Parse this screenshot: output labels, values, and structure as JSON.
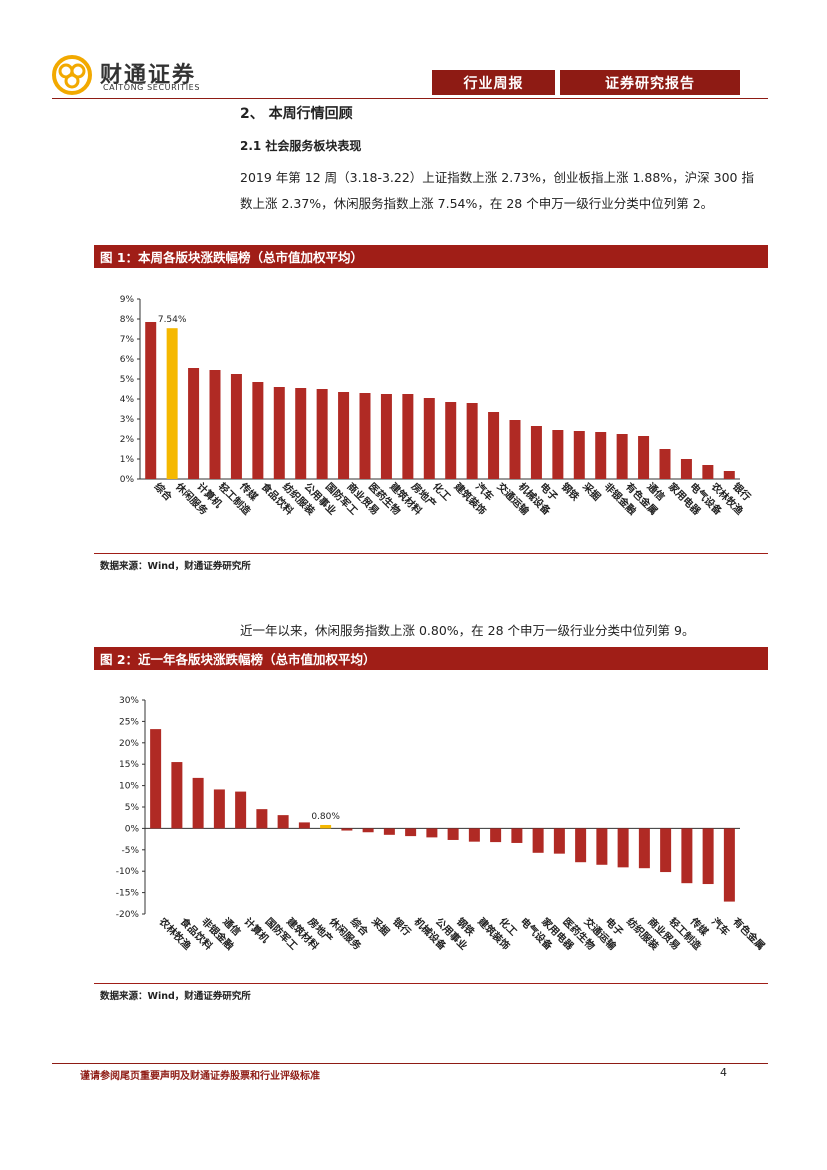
{
  "header": {
    "brand_cn": "财通证券",
    "brand_en": "CAITONG SECURITIES",
    "tag_left": "行业周报",
    "tag_right": "证券研究报告"
  },
  "section_title": "2、 本周行情回顾",
  "subsection_title": "2.1  社会服务板块表现",
  "paragraph1": "2019 年第 12 周（3.18-3.22）上证指数上涨 2.73%，创业板指上涨 1.88%，沪深 300 指数上涨 2.37%，休闲服务指数上涨 7.54%，在 28 个申万一级行业分类中位列第 2。",
  "paragraph2": "近一年以来，休闲服务指数上涨 0.80%，在 28 个申万一级行业分类中位列第 9。",
  "figure1": {
    "title": "图 1：本周各版块涨跌幅榜（总市值加权平均）",
    "source": "数据来源：Wind，财通证券研究所"
  },
  "figure2": {
    "title": "图 2：近一年各版块涨跌幅榜（总市值加权平均）",
    "source": "数据来源：Wind，财通证券研究所"
  },
  "footer": {
    "disclaimer": "谨请参阅尾页重要声明及财通证券股票和行业评级标准",
    "page": "4"
  },
  "colors": {
    "brand": "#8e1b14",
    "bar": "#b02a24",
    "highlight": "#f5b800"
  },
  "chart_data": [
    {
      "type": "bar",
      "categories": [
        "综合",
        "休闲服务",
        "计算机",
        "轻工制造",
        "传媒",
        "食品饮料",
        "纺织服装",
        "公用事业",
        "国防军工",
        "商业贸易",
        "医药生物",
        "建筑材料",
        "房地产",
        "化工",
        "建筑装饰",
        "汽车",
        "交通运输",
        "机械设备",
        "电子",
        "钢铁",
        "采掘",
        "非银金融",
        "有色金属",
        "通信",
        "家用电器",
        "电气设备",
        "农林牧渔",
        "银行"
      ],
      "values": [
        7.85,
        7.54,
        5.55,
        5.45,
        5.25,
        4.85,
        4.6,
        4.55,
        4.5,
        4.35,
        4.3,
        4.25,
        4.25,
        4.05,
        3.85,
        3.8,
        3.35,
        2.95,
        2.65,
        2.45,
        2.4,
        2.35,
        2.25,
        2.15,
        1.5,
        1.0,
        0.7,
        0.4
      ],
      "highlight_index": 1,
      "data_labels": [
        {
          "index": 1,
          "text": "7.54%"
        }
      ],
      "ylim": [
        0,
        9
      ],
      "yticks": [
        "0%",
        "1%",
        "2%",
        "3%",
        "4%",
        "5%",
        "6%",
        "7%",
        "8%",
        "9%"
      ]
    },
    {
      "type": "bar",
      "categories": [
        "农林牧渔",
        "食品饮料",
        "非银金融",
        "通信",
        "计算机",
        "国防军工",
        "建筑材料",
        "房地产",
        "休闲服务",
        "综合",
        "采掘",
        "银行",
        "机械设备",
        "公用事业",
        "钢铁",
        "建筑装饰",
        "化工",
        "电气设备",
        "家用电器",
        "医药生物",
        "交通运输",
        "电子",
        "纺织服装",
        "商业贸易",
        "轻工制造",
        "传媒",
        "汽车",
        "有色金属"
      ],
      "values": [
        23.2,
        15.5,
        11.8,
        9.1,
        8.6,
        4.5,
        3.1,
        1.4,
        0.8,
        -0.5,
        -0.9,
        -1.5,
        -1.8,
        -2.1,
        -2.7,
        -3.1,
        -3.2,
        -3.4,
        -5.7,
        -5.9,
        -7.9,
        -8.5,
        -9.1,
        -9.3,
        -10.2,
        -12.8,
        -13.0,
        -17.1
      ],
      "highlight_index": 8,
      "data_labels": [
        {
          "index": 8,
          "text": "0.80%"
        }
      ],
      "ylim": [
        -20,
        30
      ],
      "yticks": [
        "-20%",
        "-15%",
        "-10%",
        "-5%",
        "0%",
        "5%",
        "10%",
        "15%",
        "20%",
        "25%",
        "30%"
      ]
    }
  ]
}
